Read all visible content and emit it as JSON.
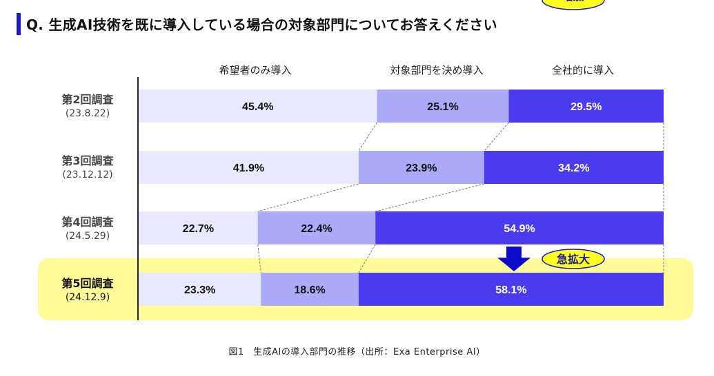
{
  "title": "Q. 生成AI技術を既に導入している場合の対象部門についてお答えください",
  "caption": "図1　生成AIの導入部門の推移（出所：Exa Enterprise AI）",
  "chart_data": {
    "type": "bar",
    "orientation": "horizontal",
    "stacked": true,
    "title": "Q. 生成AI技術を既に導入している場合の対象部門についてお答えください",
    "legend_position": "top",
    "categories": [
      {
        "label": "第2回調査",
        "date": "(23.8.22)",
        "highlight": false
      },
      {
        "label": "第3回調査",
        "date": "(23.12.12)",
        "highlight": false
      },
      {
        "label": "第4回調査",
        "date": "(24.5.29)",
        "highlight": false
      },
      {
        "label": "第5回調査",
        "date": "(24.12.9)",
        "highlight": true
      }
    ],
    "series": [
      {
        "name": "希望者のみ導入",
        "color": "#e9e9fd",
        "text_color": "#111111",
        "values": [
          45.4,
          41.9,
          22.7,
          23.3
        ]
      },
      {
        "name": "対象部門を決め導入",
        "color": "#aaaaf7",
        "text_color": "#111111",
        "values": [
          25.1,
          23.9,
          22.4,
          18.6
        ]
      },
      {
        "name": "全社的に導入",
        "color": "#4b3bee",
        "text_color": "#ffffff",
        "values": [
          29.5,
          34.2,
          54.9,
          58.1
        ]
      }
    ],
    "value_suffix": "%",
    "xlim": [
      0,
      100
    ],
    "grid": false,
    "annotations": [
      {
        "between": [
          2,
          3
        ],
        "text": "急拡大",
        "icon": "down-arrow-icon"
      },
      {
        "between": [
          3,
          4
        ],
        "text": "増加",
        "icon": "down-arrow-icon"
      }
    ]
  },
  "colors": {
    "title_accent": "#1a1acc",
    "highlight": "#fffb99",
    "arrow": "#0b0bc8",
    "callout_fill": "#ffff22",
    "callout_stroke": "#1a1acc",
    "connector": "#777777"
  }
}
